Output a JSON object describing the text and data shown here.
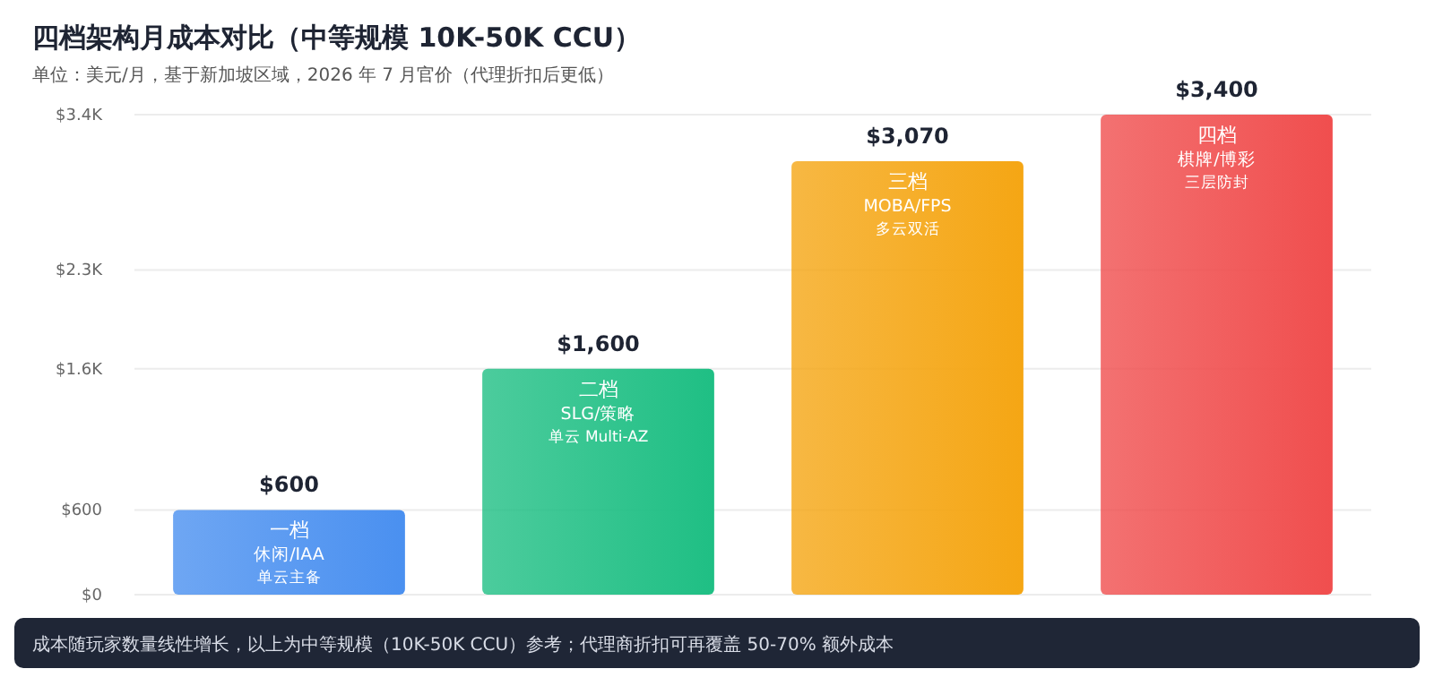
{
  "chart_data": {
    "type": "bar",
    "title": "四档架构月成本对比（中等规模 10K-50K CCU）",
    "subtitle": "单位：美元/月，基于新加坡区域，2026 年 7 月官价（代理折扣后更低）",
    "categories": [
      "一档",
      "二档",
      "三档",
      "四档"
    ],
    "values": [
      600,
      1600,
      3070,
      3400
    ],
    "colors": [
      "#4a90f0",
      "#1fbf84",
      "#f5a614",
      "#f04e4e"
    ],
    "value_labels": [
      "$600",
      "$1,600",
      "$3,070",
      "$3,400"
    ],
    "ylim": [
      0,
      3400
    ],
    "yticks": [
      {
        "value": 0,
        "label": "$0"
      },
      {
        "value": 600,
        "label": "$600"
      },
      {
        "value": 1600,
        "label": "$1.6K"
      },
      {
        "value": 2300,
        "label": "$2.3K"
      },
      {
        "value": 3400,
        "label": "$3.4K"
      }
    ],
    "grid": "y",
    "annotations": [
      "休闲/IAA",
      "单云主备",
      "SLG/策略",
      "单云 Multi-AZ",
      "MOBA/FPS",
      "多云双活",
      "棋牌/博彩",
      "三层防封",
      "成本随玩家数量线性增长，以上为中等规模（10K-50K CCU）参考；代理商折扣可再覆盖 50-70% 额外成本"
    ]
  }
}
